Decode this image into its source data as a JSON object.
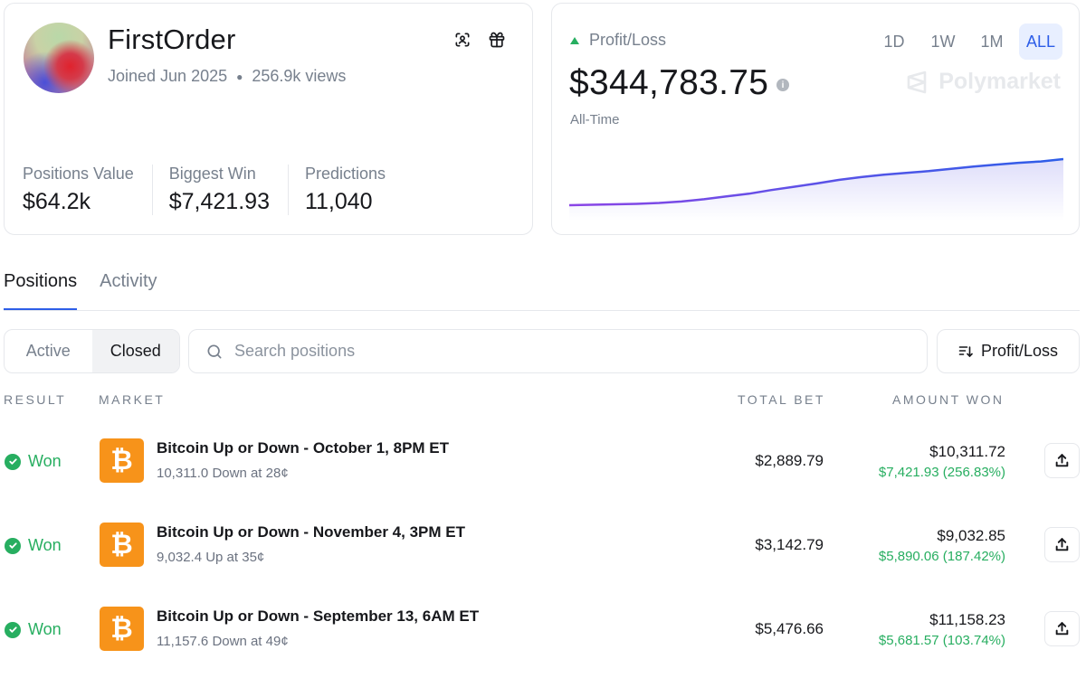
{
  "profile": {
    "username": "FirstOrder",
    "joined": "Joined Jun 2025",
    "views": "256.9k views",
    "icons": [
      "scan-face-icon",
      "gift-icon"
    ],
    "stats": [
      {
        "label": "Positions Value",
        "value": "$64.2k"
      },
      {
        "label": "Biggest Win",
        "value": "$7,421.93"
      },
      {
        "label": "Predictions",
        "value": "11,040"
      }
    ]
  },
  "pnl": {
    "label": "Profit/Loss",
    "value": "$344,783.75",
    "period": "All-Time",
    "ranges": [
      "1D",
      "1W",
      "1M",
      "ALL"
    ],
    "active_range": "ALL",
    "brand": "Polymarket",
    "colors": {
      "up": "#27ae60",
      "line_start": "#8b45e6",
      "line_end": "#2d5ee8"
    },
    "chart_trend": [
      0.0,
      0.01,
      0.02,
      0.03,
      0.05,
      0.08,
      0.13,
      0.19,
      0.25,
      0.33,
      0.4,
      0.47,
      0.55,
      0.61,
      0.66,
      0.7,
      0.74,
      0.79,
      0.84,
      0.88,
      0.92,
      0.95,
      1.0
    ]
  },
  "tabs": {
    "items": [
      "Positions",
      "Activity"
    ],
    "active": "Positions"
  },
  "filters": {
    "segments": [
      "Active",
      "Closed"
    ],
    "active_segment": "Closed",
    "search_placeholder": "Search positions",
    "sort_label": "Profit/Loss"
  },
  "table": {
    "headers": {
      "result": "RESULT",
      "market": "MARKET",
      "total_bet": "TOTAL BET",
      "amount_won": "AMOUNT WON"
    },
    "rows": [
      {
        "result": "Won",
        "title": "Bitcoin Up or Down - October 1, 8PM ET",
        "subtitle": "10,311.0 Down at 28¢",
        "total_bet": "$2,889.79",
        "amount_won": "$10,311.72",
        "profit": "$7,421.93 (256.83%)"
      },
      {
        "result": "Won",
        "title": "Bitcoin Up or Down - November 4, 3PM ET",
        "subtitle": "9,032.4 Up at 35¢",
        "total_bet": "$3,142.79",
        "amount_won": "$9,032.85",
        "profit": "$5,890.06 (187.42%)"
      },
      {
        "result": "Won",
        "title": "Bitcoin Up or Down - September 13, 6AM ET",
        "subtitle": "11,157.6 Down at 49¢",
        "total_bet": "$5,476.66",
        "amount_won": "$11,158.23",
        "profit": "$5,681.57 (103.74%)"
      }
    ],
    "coin_glyph": "₿"
  }
}
